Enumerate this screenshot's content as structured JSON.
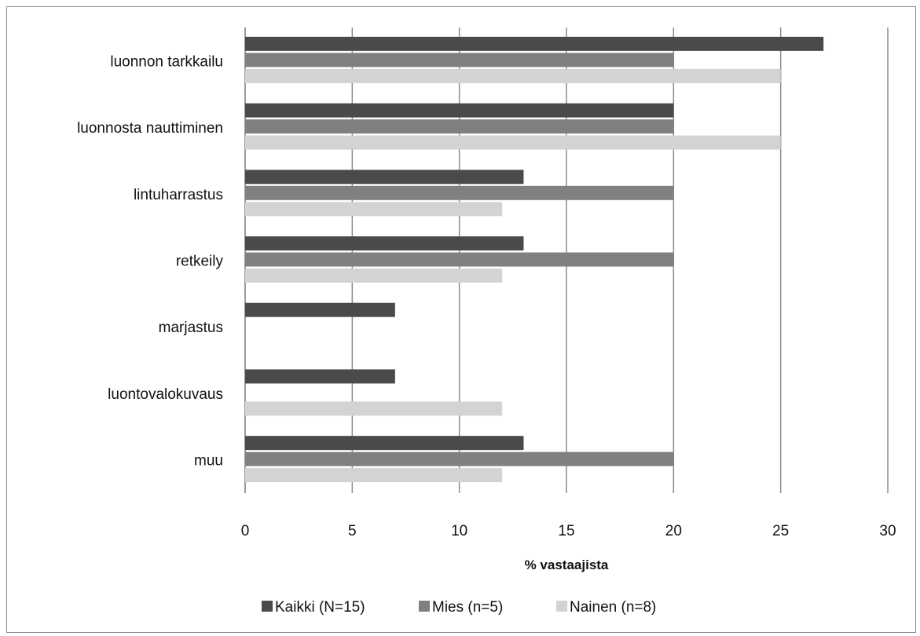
{
  "chart_data": {
    "type": "bar",
    "orientation": "horizontal",
    "title": "",
    "xlabel": "% vastaajista",
    "ylabel": "",
    "xlim": [
      0,
      30
    ],
    "xticks": [
      0,
      5,
      10,
      15,
      20,
      25,
      30
    ],
    "grid": "vertical",
    "legend_position": "bottom",
    "categories": [
      "luonnon tarkkailu",
      "luonnosta nauttiminen",
      "lintuharrastus",
      "retkeily",
      "marjastus",
      "luontovalokuvaus",
      "muu"
    ],
    "series": [
      {
        "name": "Kaikki (N=15)",
        "color": "#4a4a4a",
        "values": [
          27,
          20,
          13,
          13,
          7,
          7,
          13
        ]
      },
      {
        "name": "Mies (n=5)",
        "color": "#808080",
        "values": [
          20,
          20,
          20,
          20,
          0,
          0,
          20
        ]
      },
      {
        "name": "Nainen (n=8)",
        "color": "#d3d3d3",
        "values": [
          25,
          25,
          12,
          12,
          0,
          12,
          12
        ]
      }
    ]
  }
}
